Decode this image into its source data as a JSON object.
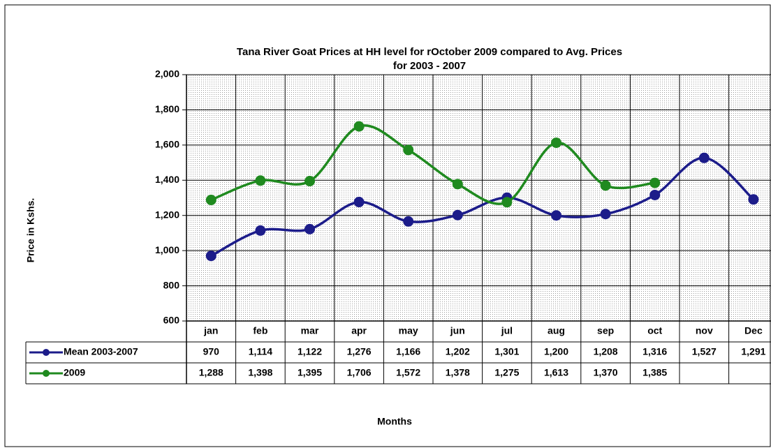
{
  "chart_data": {
    "type": "line",
    "title": [
      "Tana River Goat Prices at HH level for rOctober 2009 compared to Avg. Prices",
      "for 2003 - 2007"
    ],
    "y_label": "Price in Kshs.",
    "x_label": "Months",
    "categories": [
      "jan",
      "feb",
      "mar",
      "apr",
      "may",
      "jun",
      "jul",
      "aug",
      "sep",
      "oct",
      "nov",
      "Dec"
    ],
    "series": [
      {
        "name": "Mean 2003-2007",
        "color": "#1c1c8a",
        "values": [
          970,
          1114,
          1122,
          1276,
          1166,
          1202,
          1301,
          1200,
          1208,
          1316,
          1527,
          1291
        ],
        "value_labels": [
          "970",
          "1,114",
          "1,122",
          "1,276",
          "1,166",
          "1,202",
          "1,301",
          "1,200",
          "1,208",
          "1,316",
          "1,527",
          "1,291"
        ]
      },
      {
        "name": "2009",
        "color": "#1f8a1f",
        "values": [
          1288,
          1398,
          1395,
          1706,
          1572,
          1378,
          1275,
          1613,
          1370,
          1385,
          null,
          null
        ],
        "value_labels": [
          "1,288",
          "1,398",
          "1,395",
          "1,706",
          "1,572",
          "1,378",
          "1,275",
          "1,613",
          "1,370",
          "1,385",
          null,
          null
        ]
      }
    ],
    "ylim": [
      600,
      2000
    ],
    "yticks": [
      600,
      800,
      {
        "value": 1000,
        "label": "1,000"
      },
      {
        "value": 1200,
        "label": "1,200"
      },
      {
        "value": 1400,
        "label": "1,400"
      },
      {
        "value": 1600,
        "label": "1,600"
      },
      {
        "value": 1800,
        "label": "1,800"
      },
      {
        "value": 2000,
        "label": "2,000"
      }
    ],
    "grid": true
  }
}
